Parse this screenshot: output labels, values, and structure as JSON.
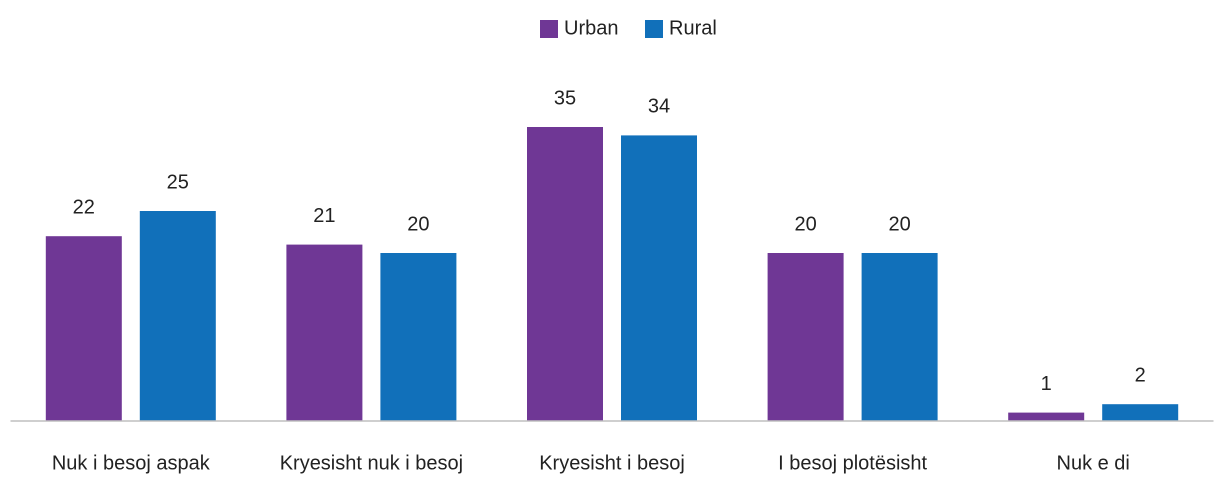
{
  "chart_data": {
    "type": "bar",
    "categories": [
      "Nuk i besoj aspak",
      "Kryesisht nuk i besoj",
      "Kryesisht i besoj",
      "I besoj plotësisht",
      "Nuk e di"
    ],
    "series": [
      {
        "name": "Urban",
        "color": "#6f3795",
        "values": [
          22,
          21,
          35,
          20,
          1
        ]
      },
      {
        "name": "Rural",
        "color": "#1170ba",
        "values": [
          25,
          20,
          34,
          20,
          2
        ]
      }
    ],
    "legend": "top"
  }
}
